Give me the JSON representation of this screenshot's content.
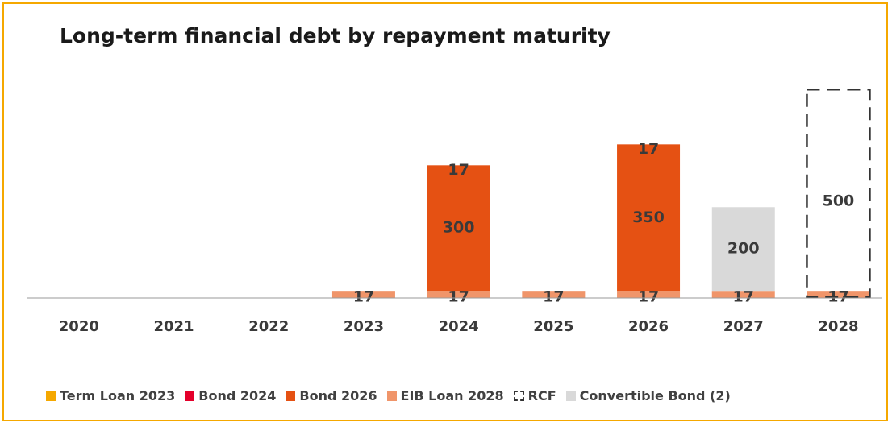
{
  "chart_data": {
    "type": "bar",
    "stacked": true,
    "title": "Long-term financial debt by repayment maturity",
    "categories": [
      "2020",
      "2021",
      "2022",
      "2023",
      "2024",
      "2025",
      "2026",
      "2027",
      "2028"
    ],
    "series": [
      {
        "name": "Term Loan 2023",
        "color": "#f5a800",
        "values": [
          0,
          0,
          0,
          0,
          0,
          0,
          0,
          0,
          0
        ]
      },
      {
        "name": "Bond 2024",
        "color": "#e4002b",
        "values": [
          0,
          0,
          0,
          0,
          0,
          0,
          0,
          0,
          0
        ]
      },
      {
        "name": "EIB Loan 2028",
        "color": "#f0956a",
        "values": [
          0,
          0,
          0,
          17,
          17,
          17,
          17,
          17,
          17
        ]
      },
      {
        "name": "Bond 2026",
        "color": "#e55113",
        "values": [
          0,
          0,
          0,
          0,
          300,
          0,
          350,
          0,
          0
        ]
      },
      {
        "name": "Convertible Bond (2)",
        "color": "#d9d9d9",
        "values": [
          0,
          0,
          0,
          0,
          0,
          0,
          0,
          200,
          0
        ]
      },
      {
        "name": "RCF",
        "color": "#333333",
        "style": "dashed-outline",
        "values": [
          0,
          0,
          0,
          0,
          0,
          0,
          0,
          0,
          500
        ]
      }
    ],
    "legend_order": [
      "Term Loan 2023",
      "Bond 2024",
      "Bond 2026",
      "EIB Loan 2028",
      "RCF",
      "Convertible Bond (2)"
    ],
    "legend_position": "bottom",
    "ylim": [
      0,
      1000
    ],
    "grid": false
  },
  "legend": {
    "items": [
      {
        "label": "Term Loan 2023",
        "color": "#f5a800",
        "outline": false
      },
      {
        "label": "Bond 2024",
        "color": "#e4002b",
        "outline": false
      },
      {
        "label": "Bond 2026",
        "color": "#e55113",
        "outline": false
      },
      {
        "label": "EIB Loan 2028",
        "color": "#f0956a",
        "outline": false
      },
      {
        "label": "RCF",
        "color": "#333333",
        "outline": true
      },
      {
        "label": "Convertible Bond (2)",
        "color": "#d9d9d9",
        "outline": false
      }
    ]
  }
}
